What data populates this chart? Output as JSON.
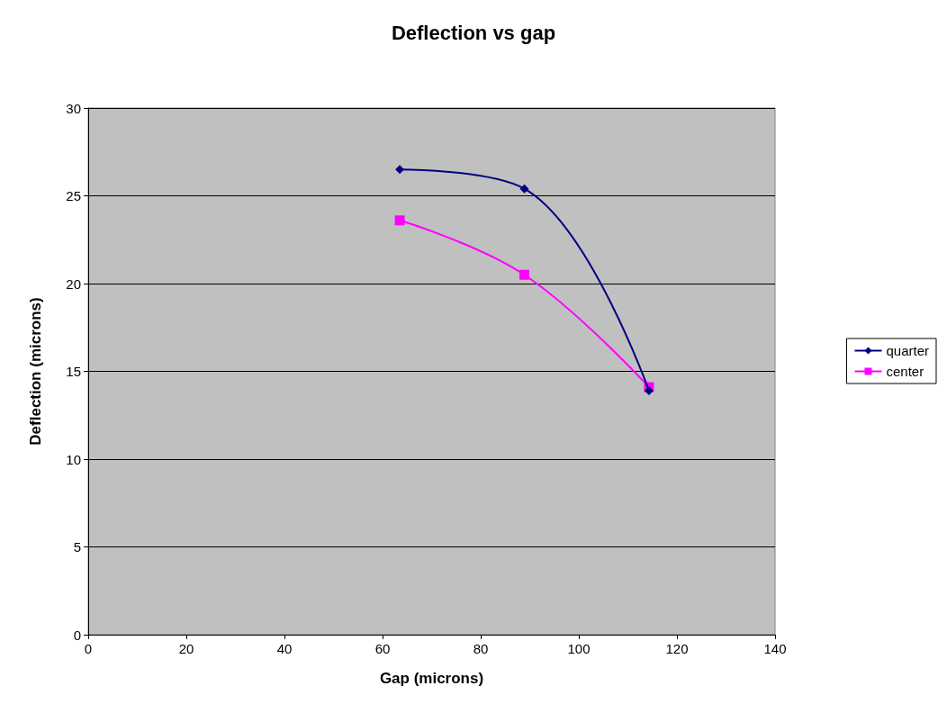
{
  "chart_data": {
    "type": "line",
    "title": "Deflection vs gap",
    "xlabel": "Gap (microns)",
    "ylabel": "Deflection (microns)",
    "x": [
      63.5,
      88.9,
      114.3
    ],
    "series": [
      {
        "name": "quarter",
        "color": "#000080",
        "marker": "diamond",
        "values": [
          26.5,
          25.4,
          13.9
        ]
      },
      {
        "name": "center",
        "color": "#ff00ff",
        "marker": "square",
        "values": [
          23.6,
          20.5,
          14.1
        ]
      }
    ],
    "xlim": [
      0,
      140
    ],
    "xticks": [
      0,
      20,
      40,
      60,
      80,
      100,
      120,
      140
    ],
    "ylim": [
      0,
      30
    ],
    "yticks": [
      0,
      5,
      10,
      15,
      20,
      25,
      30
    ],
    "grid": "y",
    "legend": "right",
    "line_style": "solid"
  }
}
